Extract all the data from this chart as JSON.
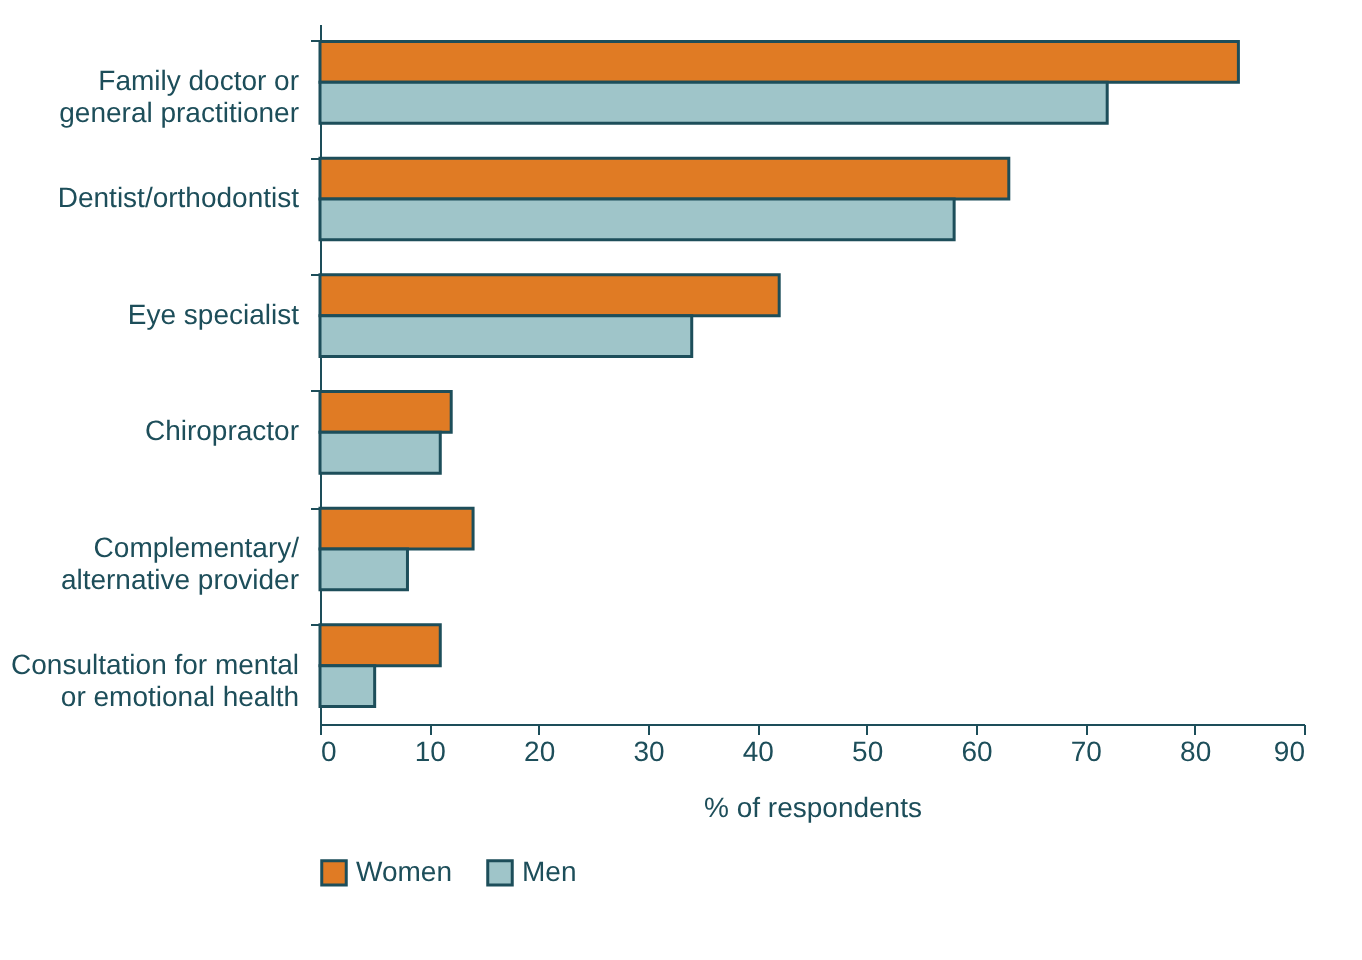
{
  "chart_data": {
    "type": "bar",
    "orientation": "horizontal",
    "xlabel": "% of respondents",
    "categories": [
      "Family doctor or\ngeneral practitioner",
      "Dentist/orthodontist",
      "Eye specialist",
      "Chiropractor",
      "Complementary/\nalternative provider",
      "Consultation for mental\nor emotional health"
    ],
    "series": [
      {
        "name": "Women",
        "color": "#e07b24",
        "values": [
          84,
          63,
          42,
          12,
          14,
          11
        ]
      },
      {
        "name": "Men",
        "color": "#9fc5c9",
        "values": [
          72,
          58,
          34,
          11,
          8,
          5
        ]
      }
    ],
    "xlim": [
      0,
      90
    ],
    "xticks": [
      0,
      10,
      20,
      30,
      40,
      50,
      60,
      70,
      80,
      90
    ],
    "grid": false,
    "legend": "bottom"
  }
}
